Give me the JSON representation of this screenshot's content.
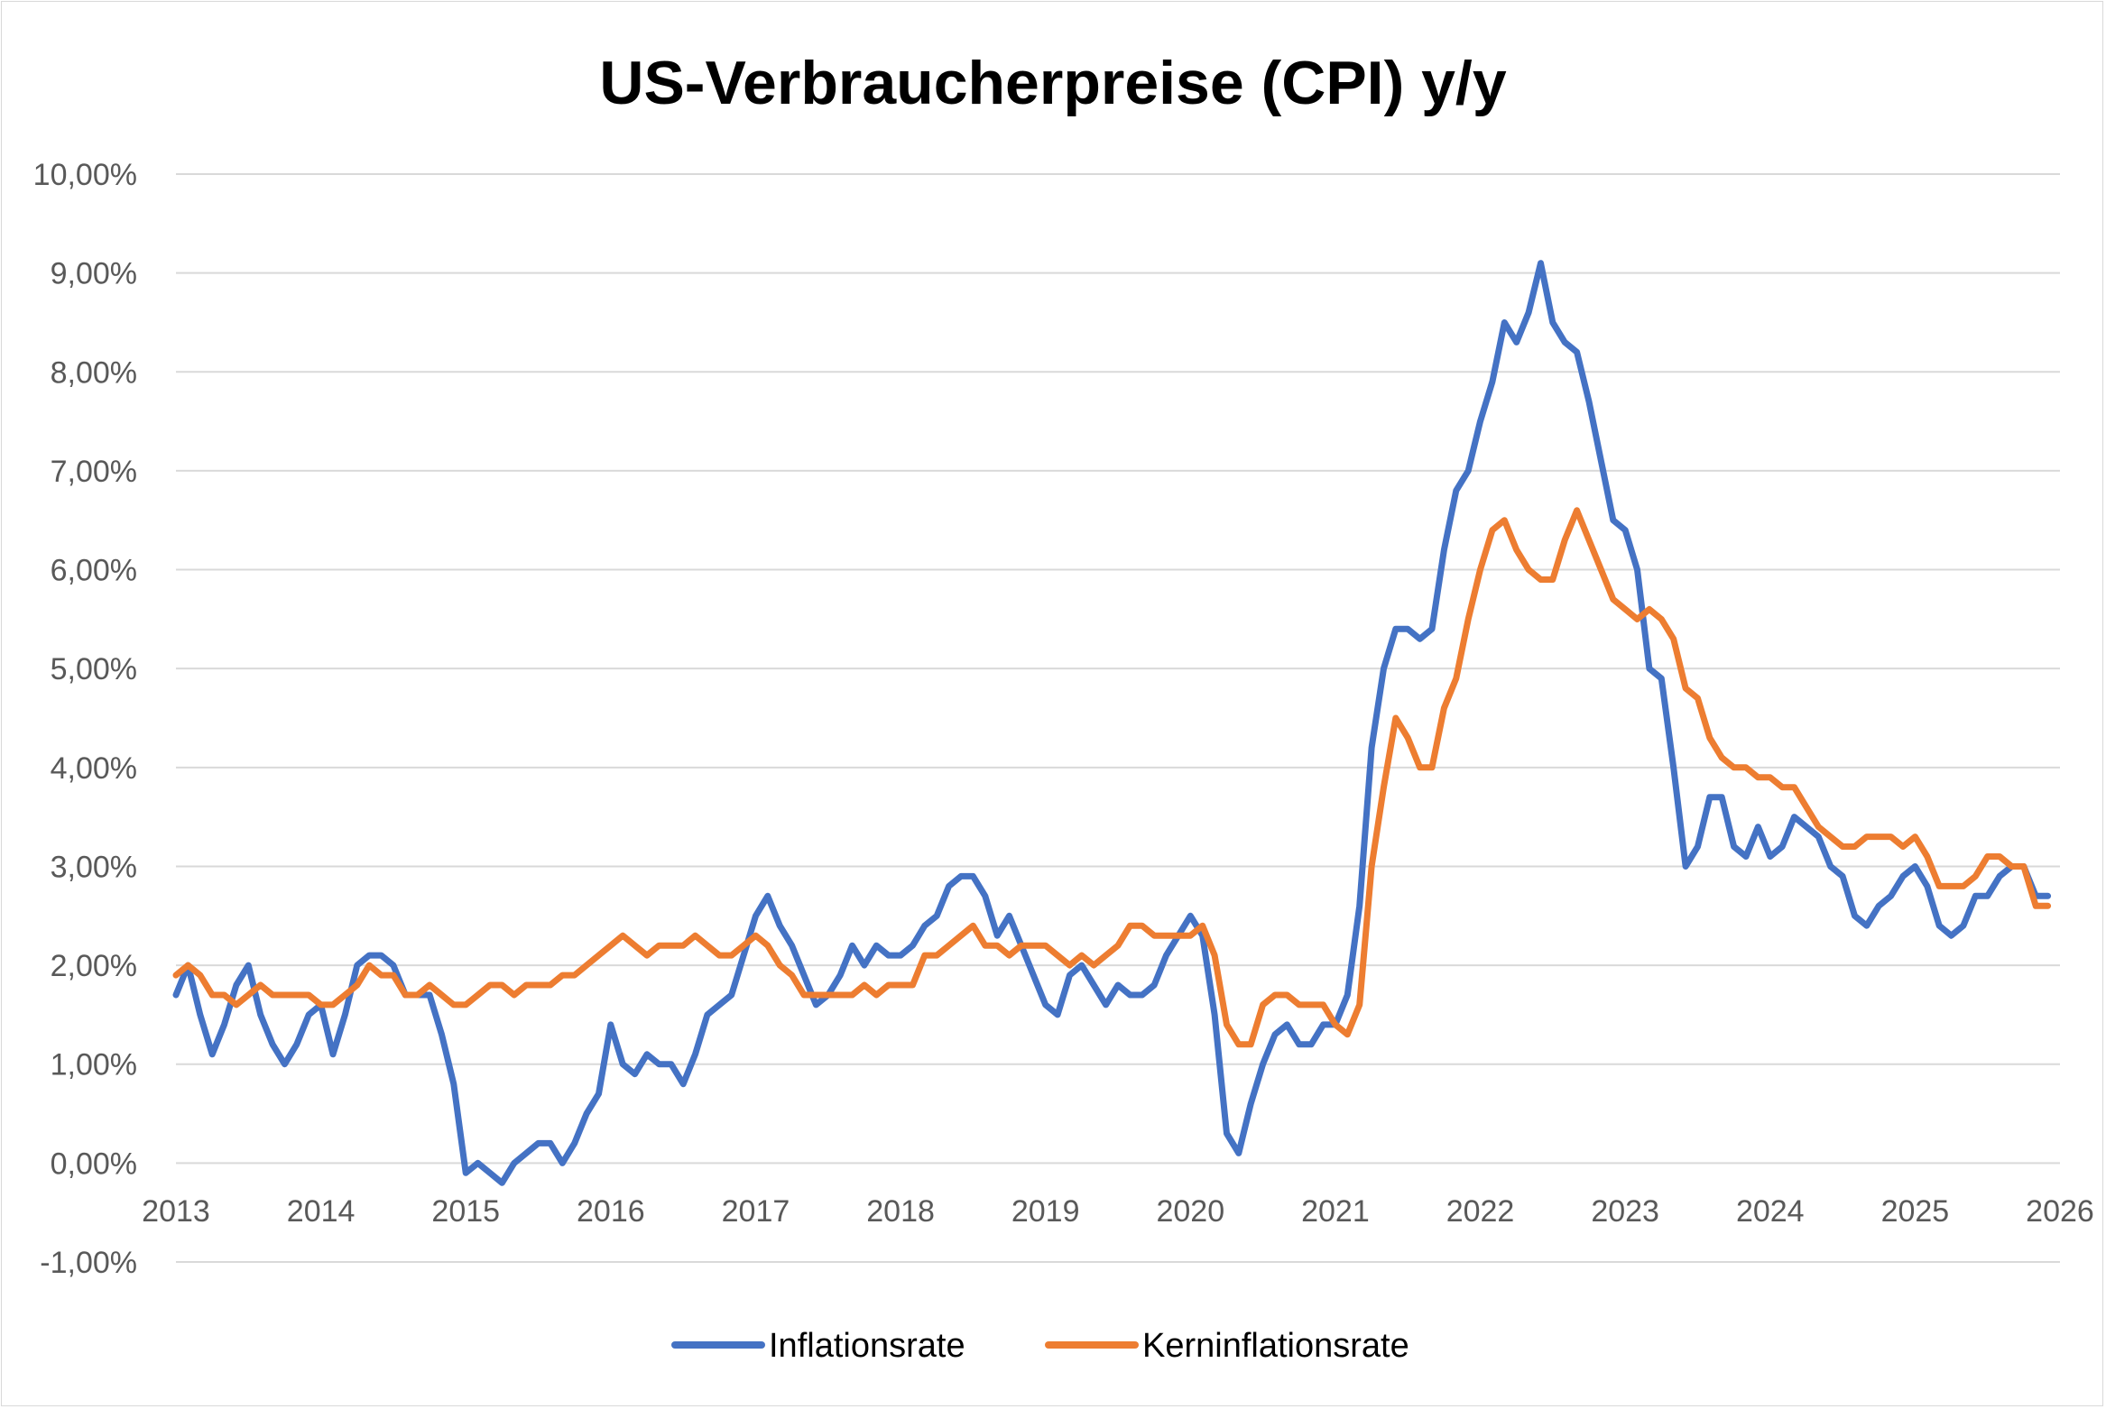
{
  "chart_data": {
    "type": "line",
    "title": "US-Verbraucherpreise (CPI) y/y",
    "xlabel": "",
    "ylabel": "",
    "ylim": [
      -1,
      10
    ],
    "y_ticks": [
      -1,
      0,
      1,
      2,
      3,
      4,
      5,
      6,
      7,
      8,
      9,
      10
    ],
    "y_tick_labels": [
      "-1,00%",
      "0,00%",
      "1,00%",
      "2,00%",
      "3,00%",
      "4,00%",
      "5,00%",
      "6,00%",
      "7,00%",
      "8,00%",
      "9,00%",
      "10,00%"
    ],
    "x_tick_labels": [
      "2013",
      "2014",
      "2015",
      "2016",
      "2017",
      "2018",
      "2019",
      "2020",
      "2021",
      "2022",
      "2023",
      "2024",
      "2025",
      "2026"
    ],
    "x_range": [
      "2013-01",
      "2026-01"
    ],
    "grid": true,
    "legend_position": "bottom",
    "x_start": "2013-01",
    "x_step": "month",
    "series": [
      {
        "name": "Inflationsrate",
        "color": "#4472c4",
        "values": [
          1.7,
          2.0,
          1.5,
          1.1,
          1.4,
          1.8,
          2.0,
          1.5,
          1.2,
          1.0,
          1.2,
          1.5,
          1.6,
          1.1,
          1.5,
          2.0,
          2.1,
          2.1,
          2.0,
          1.7,
          1.7,
          1.7,
          1.3,
          0.8,
          -0.1,
          0.0,
          -0.1,
          -0.2,
          0.0,
          0.1,
          0.2,
          0.2,
          0.0,
          0.2,
          0.5,
          0.7,
          1.4,
          1.0,
          0.9,
          1.1,
          1.0,
          1.0,
          0.8,
          1.1,
          1.5,
          1.6,
          1.7,
          2.1,
          2.5,
          2.7,
          2.4,
          2.2,
          1.9,
          1.6,
          1.7,
          1.9,
          2.2,
          2.0,
          2.2,
          2.1,
          2.1,
          2.2,
          2.4,
          2.5,
          2.8,
          2.9,
          2.9,
          2.7,
          2.3,
          2.5,
          2.2,
          1.9,
          1.6,
          1.5,
          1.9,
          2.0,
          1.8,
          1.6,
          1.8,
          1.7,
          1.7,
          1.8,
          2.1,
          2.3,
          2.5,
          2.3,
          1.5,
          0.3,
          0.1,
          0.6,
          1.0,
          1.3,
          1.4,
          1.2,
          1.2,
          1.4,
          1.4,
          1.7,
          2.6,
          4.2,
          5.0,
          5.4,
          5.4,
          5.3,
          5.4,
          6.2,
          6.8,
          7.0,
          7.5,
          7.9,
          8.5,
          8.3,
          8.6,
          9.1,
          8.5,
          8.3,
          8.2,
          7.7,
          7.1,
          6.5,
          6.4,
          6.0,
          5.0,
          4.9,
          4.0,
          3.0,
          3.2,
          3.7,
          3.7,
          3.2,
          3.1,
          3.4,
          3.1,
          3.2,
          3.5,
          3.4,
          3.3,
          3.0,
          2.9,
          2.5,
          2.4,
          2.6,
          2.7,
          2.9,
          3.0,
          2.8,
          2.4,
          2.3,
          2.4,
          2.7,
          2.7,
          2.9,
          3.0,
          3.0,
          2.7,
          2.7
        ]
      },
      {
        "name": "Kerninflationsrate",
        "color": "#ed7d31",
        "values": [
          1.9,
          2.0,
          1.9,
          1.7,
          1.7,
          1.6,
          1.7,
          1.8,
          1.7,
          1.7,
          1.7,
          1.7,
          1.6,
          1.6,
          1.7,
          1.8,
          2.0,
          1.9,
          1.9,
          1.7,
          1.7,
          1.8,
          1.7,
          1.6,
          1.6,
          1.7,
          1.8,
          1.8,
          1.7,
          1.8,
          1.8,
          1.8,
          1.9,
          1.9,
          2.0,
          2.1,
          2.2,
          2.3,
          2.2,
          2.1,
          2.2,
          2.2,
          2.2,
          2.3,
          2.2,
          2.1,
          2.1,
          2.2,
          2.3,
          2.2,
          2.0,
          1.9,
          1.7,
          1.7,
          1.7,
          1.7,
          1.7,
          1.8,
          1.7,
          1.8,
          1.8,
          1.8,
          2.1,
          2.1,
          2.2,
          2.3,
          2.4,
          2.2,
          2.2,
          2.1,
          2.2,
          2.2,
          2.2,
          2.1,
          2.0,
          2.1,
          2.0,
          2.1,
          2.2,
          2.4,
          2.4,
          2.3,
          2.3,
          2.3,
          2.3,
          2.4,
          2.1,
          1.4,
          1.2,
          1.2,
          1.6,
          1.7,
          1.7,
          1.6,
          1.6,
          1.6,
          1.4,
          1.3,
          1.6,
          3.0,
          3.8,
          4.5,
          4.3,
          4.0,
          4.0,
          4.6,
          4.9,
          5.5,
          6.0,
          6.4,
          6.5,
          6.2,
          6.0,
          5.9,
          5.9,
          6.3,
          6.6,
          6.3,
          6.0,
          5.7,
          5.6,
          5.5,
          5.6,
          5.5,
          5.3,
          4.8,
          4.7,
          4.3,
          4.1,
          4.0,
          4.0,
          3.9,
          3.9,
          3.8,
          3.8,
          3.6,
          3.4,
          3.3,
          3.2,
          3.2,
          3.3,
          3.3,
          3.3,
          3.2,
          3.3,
          3.1,
          2.8,
          2.8,
          2.8,
          2.9,
          3.1,
          3.1,
          3.0,
          3.0,
          2.6,
          2.6
        ]
      }
    ]
  }
}
